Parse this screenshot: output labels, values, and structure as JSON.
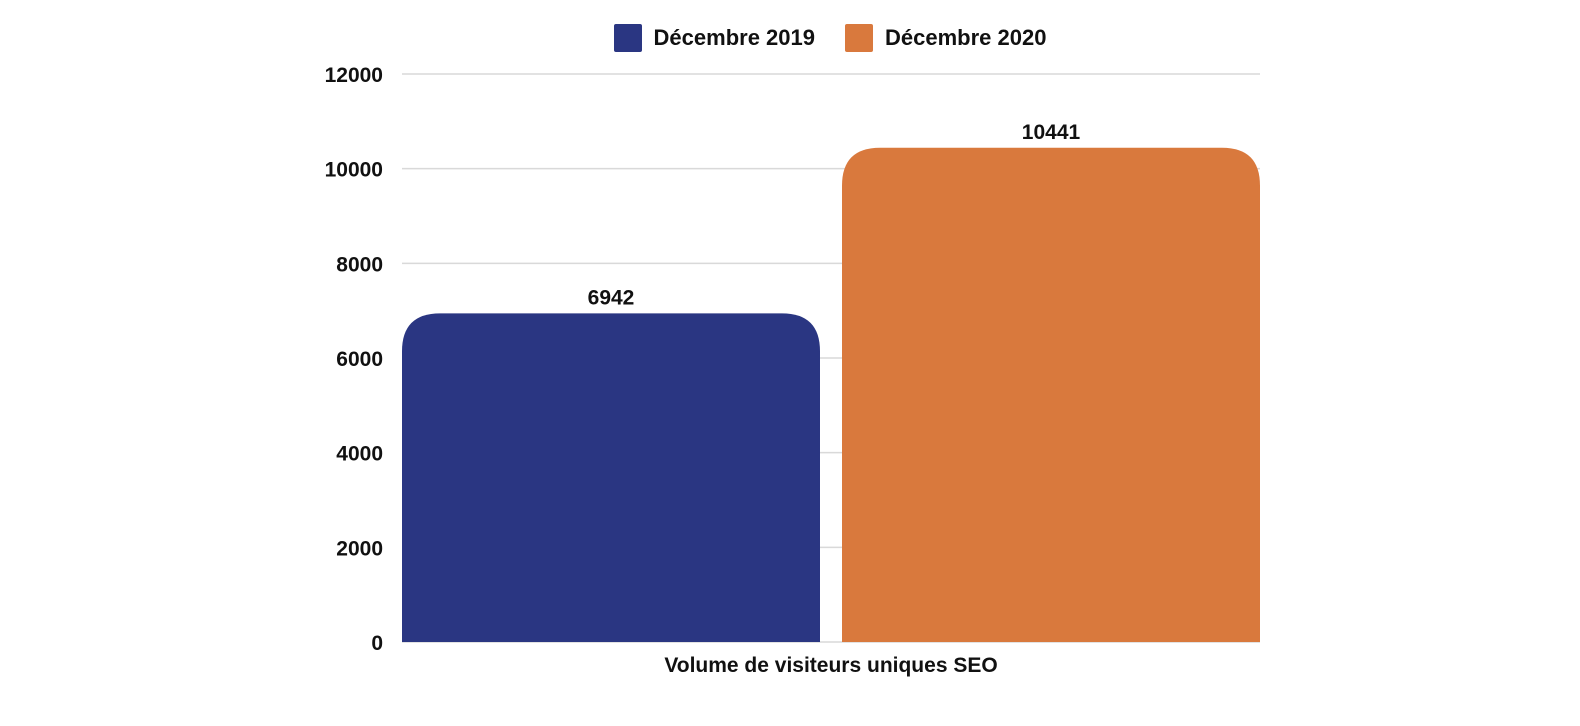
{
  "chart_data": {
    "type": "bar",
    "categories": [
      "Volume de visiteurs uniques SEO"
    ],
    "series": [
      {
        "name": "Décembre 2019",
        "values": [
          6942
        ],
        "color": "#2a3682"
      },
      {
        "name": "Décembre 2020",
        "values": [
          10441
        ],
        "color": "#d9793d"
      }
    ],
    "ylim": [
      0,
      12000
    ],
    "yticks": [
      0,
      2000,
      4000,
      6000,
      8000,
      10000,
      12000
    ],
    "xlabel": "Volume de visiteurs uniques SEO",
    "ylabel": "",
    "title": "",
    "grid": true,
    "legend_position": "top-center",
    "data_labels": [
      "6942",
      "10441"
    ]
  }
}
